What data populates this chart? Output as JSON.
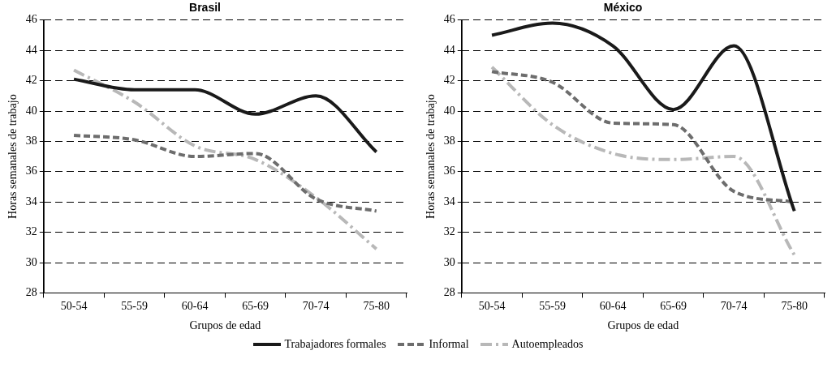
{
  "chart_data": [
    {
      "type": "line",
      "title": "Brasil",
      "xlabel": "Grupos de edad",
      "ylabel": "Horas semanales de trabajo",
      "categories": [
        "50-54",
        "55-59",
        "60-64",
        "65-69",
        "70-74",
        "75-80"
      ],
      "series": [
        {
          "name": "Trabajadores formales",
          "color": "#1a1a1a",
          "line_style": "solid",
          "values": [
            42.1,
            41.4,
            41.4,
            39.8,
            41.0,
            37.3
          ]
        },
        {
          "name": "Informal",
          "color": "#6d6d6d",
          "line_style": "dashed",
          "values": [
            38.4,
            38.1,
            37.0,
            37.2,
            34.2,
            33.4
          ]
        },
        {
          "name": "Autoempleados",
          "color": "#b8b8b8",
          "line_style": "dotted",
          "values": [
            42.7,
            40.6,
            37.7,
            36.8,
            34.3,
            30.9
          ]
        }
      ],
      "ylim": [
        28,
        46
      ],
      "yticks": [
        28,
        30,
        32,
        34,
        36,
        38,
        40,
        42,
        44,
        46
      ],
      "grid": "y",
      "legend": "bottom"
    },
    {
      "type": "line",
      "title": "México",
      "xlabel": "Grupos de edad",
      "ylabel": "Horas semanales de trabajo",
      "categories": [
        "50-54",
        "55-59",
        "60-64",
        "65-69",
        "70-74",
        "75-80"
      ],
      "series": [
        {
          "color": "#1a1a1a",
          "line_style": "solid",
          "values": [
            45.0,
            45.8,
            44.3,
            40.1,
            44.3,
            33.4
          ]
        },
        {
          "color": "#6d6d6d",
          "line_style": "dashed",
          "values": [
            42.6,
            41.9,
            39.2,
            39.1,
            34.7,
            34.0
          ]
        },
        {
          "color": "#b8b8b8",
          "line_style": "dotted",
          "values": [
            42.9,
            39.1,
            37.2,
            36.8,
            37.0,
            30.5
          ]
        }
      ],
      "ylim": [
        28,
        46
      ],
      "yticks": [
        28,
        30,
        32,
        34,
        36,
        38,
        40,
        42,
        44,
        46
      ],
      "grid": "y"
    }
  ]
}
